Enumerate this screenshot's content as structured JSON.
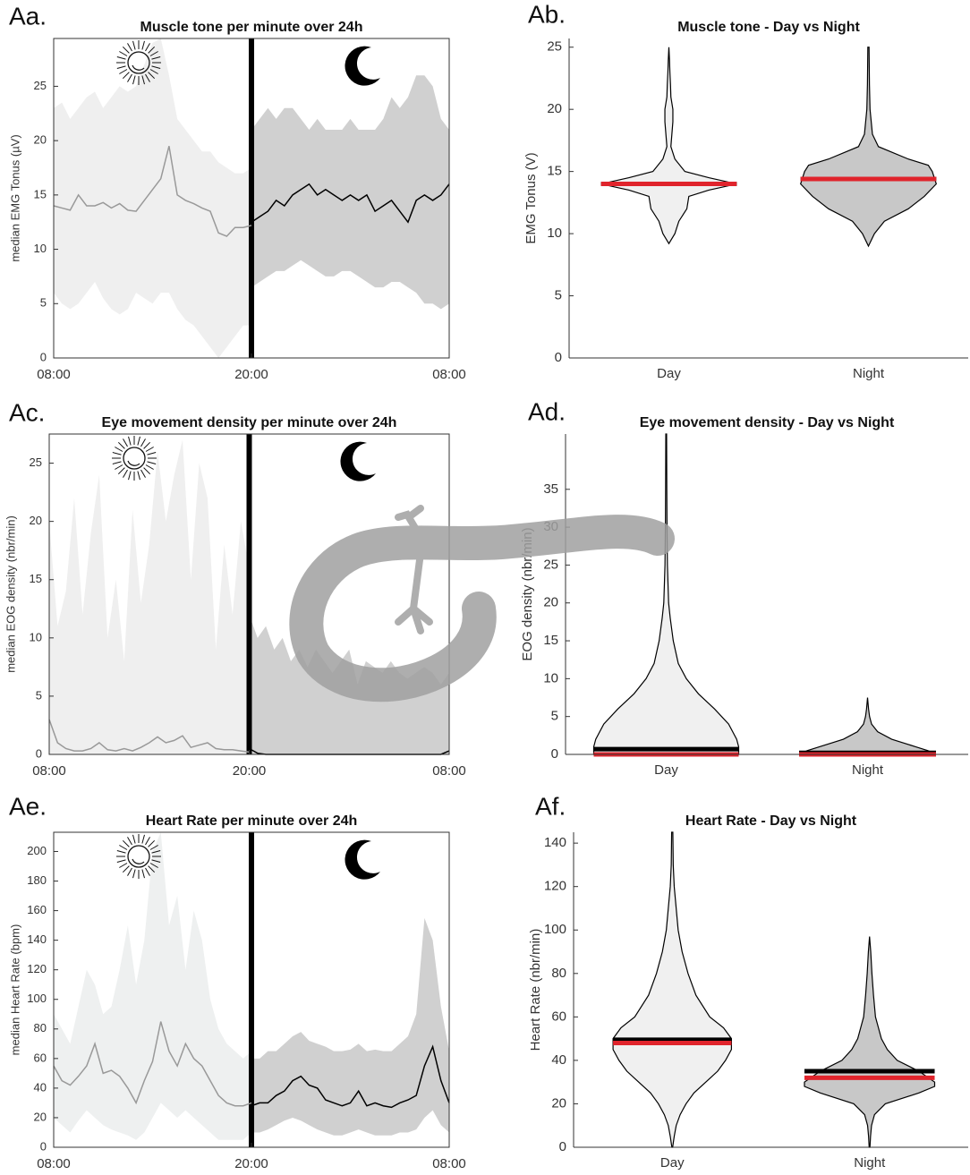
{
  "chart_data": [
    {
      "type": "line",
      "panel_label": "Aa.",
      "title": "Muscle tone per minute over 24h",
      "ylabel": "median EMG Tonus (µV)",
      "xlim": [
        0,
        24
      ],
      "xticks": [
        {
          "value": 0,
          "label": "08:00"
        },
        {
          "value": 12,
          "label": "20:00"
        },
        {
          "value": 24,
          "label": "08:00"
        }
      ],
      "ylim": [
        0,
        29.4
      ],
      "yticks": [
        0,
        5,
        10,
        15,
        20,
        25
      ],
      "divider": 12,
      "series": [
        {
          "color": "#999999",
          "band_color": "#efefef",
          "x": [
            0,
            0.5,
            1,
            1.5,
            2,
            2.5,
            3,
            3.5,
            4,
            4.5,
            5,
            5.5,
            6,
            6.5,
            7,
            7.5,
            8,
            8.5,
            9,
            9.5,
            10,
            10.5,
            11,
            11.5,
            12
          ],
          "values": [
            14,
            13.8,
            13.6,
            15,
            14,
            14,
            14.3,
            13.8,
            14.2,
            13.6,
            13.5,
            14.5,
            15.5,
            16.5,
            19.5,
            15,
            14.5,
            14.2,
            13.8,
            13.5,
            11.5,
            11.2,
            12,
            12,
            12.2
          ],
          "upper": [
            23,
            23.5,
            22,
            23,
            24,
            24.5,
            23,
            24,
            25,
            24.5,
            25,
            27,
            29,
            29.4,
            26,
            22,
            21,
            20,
            19,
            19,
            18,
            17.5,
            17,
            17,
            17.5
          ],
          "lower": [
            6,
            5,
            4.5,
            5,
            6,
            7,
            5.5,
            4.5,
            4,
            4.5,
            6,
            5.5,
            5,
            6,
            6,
            4.5,
            3.5,
            3,
            2,
            1,
            0,
            1,
            2,
            3,
            3
          ]
        },
        {
          "color": "#000000",
          "band_color": "#d0d0d0",
          "x": [
            12,
            12.5,
            13,
            13.5,
            14,
            14.5,
            15,
            15.5,
            16,
            16.5,
            17,
            17.5,
            18,
            18.5,
            19,
            19.5,
            20,
            20.5,
            21,
            21.5,
            22,
            22.5,
            23,
            23.5,
            24
          ],
          "values": [
            12.5,
            13,
            13.5,
            14.5,
            14,
            15,
            15.5,
            16,
            15,
            15.5,
            15,
            14.5,
            15,
            14.5,
            15,
            13.5,
            14,
            14.5,
            13.5,
            12.5,
            14.5,
            15,
            14.5,
            15,
            16
          ],
          "upper": [
            21,
            22,
            23,
            22,
            23,
            23,
            22,
            21,
            22,
            21,
            21,
            21,
            22,
            21,
            21,
            21,
            22,
            24,
            23,
            24,
            26,
            26,
            25,
            22,
            21
          ],
          "lower": [
            6.5,
            7,
            7.5,
            8,
            8,
            8.5,
            9,
            8.5,
            8,
            7.5,
            7.5,
            8,
            8,
            7.5,
            7,
            6.5,
            6.5,
            7,
            7,
            6.5,
            6,
            5,
            5,
            4.5,
            5
          ]
        }
      ]
    },
    {
      "type": "violin",
      "panel_label": "Ab.",
      "title": "Muscle tone - Day vs Night",
      "ylabel": "EMG Tonus (V)",
      "categories": [
        "Day",
        "Night"
      ],
      "ylim": [
        0,
        25.7
      ],
      "yticks": [
        0,
        5,
        10,
        15,
        20,
        25
      ],
      "violins": [
        {
          "fill": "#f0f0f0",
          "y": [
            9.2,
            10,
            11,
            12,
            13,
            13.5,
            14,
            14.5,
            15,
            16,
            17,
            18,
            19,
            20,
            21,
            22,
            23,
            24,
            25
          ],
          "width": [
            0,
            0.03,
            0.05,
            0.09,
            0.1,
            0.2,
            0.34,
            0.2,
            0.08,
            0.03,
            0.01,
            0.015,
            0.02,
            0.02,
            0.01,
            0.008,
            0.005,
            0.003,
            0
          ]
        },
        {
          "fill": "#c8c8c8",
          "y": [
            9,
            10,
            11,
            12,
            13,
            14,
            15,
            15.5,
            16,
            17,
            18,
            20,
            22,
            25
          ],
          "width": [
            0,
            0.03,
            0.08,
            0.2,
            0.28,
            0.34,
            0.32,
            0.3,
            0.2,
            0.05,
            0.02,
            0.008,
            0.005,
            0.003
          ]
        }
      ],
      "means": [
        14,
        14.4
      ],
      "mean_color": "#000000",
      "medians": [
        14,
        14.4
      ],
      "median_color": "#e0242c"
    },
    {
      "type": "line",
      "panel_label": "Ac.",
      "title": "Eye movement density per minute over 24h",
      "ylabel": "median EOG density (nbr/min)",
      "xlim": [
        0,
        24
      ],
      "xticks": [
        {
          "value": 0,
          "label": "08:00"
        },
        {
          "value": 12,
          "label": "20:00"
        },
        {
          "value": 24,
          "label": "08:00"
        }
      ],
      "ylim": [
        0,
        27.5
      ],
      "yticks": [
        0,
        5,
        10,
        15,
        20,
        25
      ],
      "divider": 12,
      "series": [
        {
          "color": "#999999",
          "band_color": "#efefef",
          "x": [
            0,
            0.5,
            1,
            1.5,
            2,
            2.5,
            3,
            3.5,
            4,
            4.5,
            5,
            5.5,
            6,
            6.5,
            7,
            7.5,
            8,
            8.5,
            9,
            9.5,
            10,
            10.5,
            11,
            11.5,
            12
          ],
          "values": [
            3,
            1,
            0.5,
            0.3,
            0.3,
            0.5,
            1,
            0.4,
            0.3,
            0.5,
            0.3,
            0.6,
            1,
            1.5,
            1,
            1.2,
            1.6,
            0.6,
            0.8,
            1,
            0.5,
            0.4,
            0.4,
            0.3,
            0.2
          ],
          "upper": [
            20,
            11,
            14,
            22,
            12,
            19,
            24,
            10,
            15,
            8,
            21,
            13,
            18,
            26,
            20,
            24,
            27,
            15,
            25,
            22,
            9,
            18,
            12,
            20,
            16
          ],
          "lower": [
            0,
            0,
            0,
            0,
            0,
            0,
            0,
            0,
            0,
            0,
            0,
            0,
            0,
            0,
            0,
            0,
            0,
            0,
            0,
            0,
            0,
            0,
            0,
            0,
            0
          ]
        },
        {
          "color": "#000000",
          "band_color": "#d0d0d0",
          "x": [
            12,
            12.5,
            13,
            13.5,
            14,
            14.5,
            15,
            15.5,
            16,
            16.5,
            17,
            17.5,
            18,
            18.5,
            19,
            19.5,
            20,
            20.5,
            21,
            21.5,
            22,
            22.5,
            23,
            23.5,
            24
          ],
          "values": [
            0.5,
            0.1,
            0,
            0,
            0,
            0,
            0,
            0,
            0,
            0,
            0,
            0,
            0,
            0,
            0,
            0,
            0,
            0,
            0,
            0,
            0,
            0,
            0,
            0,
            0.3
          ],
          "upper": [
            12,
            10,
            11,
            9,
            10,
            8,
            9,
            7.5,
            9,
            8,
            7,
            8,
            9,
            6,
            8,
            7.5,
            7,
            8,
            7,
            6.5,
            7,
            7.5,
            7,
            6,
            7
          ],
          "lower": [
            0,
            0,
            0,
            0,
            0,
            0,
            0,
            0,
            0,
            0,
            0,
            0,
            0,
            0,
            0,
            0,
            0,
            0,
            0,
            0,
            0,
            0,
            0,
            0,
            0
          ]
        }
      ]
    },
    {
      "type": "violin",
      "panel_label": "Ad.",
      "title": "Eye movement density - Day vs Night",
      "ylabel": "EOG density (nbr/min)",
      "categories": [
        "Day",
        "Night"
      ],
      "ylim": [
        0,
        42.3
      ],
      "yticks": [
        0,
        5,
        10,
        15,
        20,
        25,
        30,
        35
      ],
      "violins": [
        {
          "fill": "#f0f0f0",
          "y": [
            0,
            1,
            2,
            4,
            6,
            8,
            10,
            12,
            15,
            18,
            20,
            25,
            30,
            35,
            42.3
          ],
          "width": [
            0.36,
            0.36,
            0.35,
            0.31,
            0.24,
            0.16,
            0.1,
            0.06,
            0.035,
            0.02,
            0.012,
            0.006,
            0.004,
            0.003,
            0.002
          ]
        },
        {
          "fill": "#c8c8c8",
          "y": [
            0,
            0.5,
            1,
            2,
            3,
            4,
            5,
            6,
            7.5
          ],
          "width": [
            0.34,
            0.3,
            0.24,
            0.12,
            0.05,
            0.02,
            0.01,
            0.005,
            0
          ]
        }
      ],
      "means": [
        0.7,
        0.2
      ],
      "mean_color": "#000000",
      "medians": [
        0,
        0
      ],
      "median_color": "#e0242c"
    },
    {
      "type": "line",
      "panel_label": "Ae.",
      "title": "Heart Rate per minute over 24h",
      "ylabel": "median Heart Rate (bpm)",
      "xlim": [
        0,
        24
      ],
      "xticks": [
        {
          "value": 0,
          "label": "08:00"
        },
        {
          "value": 12,
          "label": "20:00"
        },
        {
          "value": 24,
          "label": "08:00"
        }
      ],
      "ylim": [
        0,
        213
      ],
      "yticks": [
        0,
        20,
        40,
        60,
        80,
        100,
        120,
        140,
        160,
        180,
        200
      ],
      "divider": 12,
      "series": [
        {
          "color": "#999999",
          "band_color": "#eef0f0",
          "x": [
            0,
            0.5,
            1,
            1.5,
            2,
            2.5,
            3,
            3.5,
            4,
            4.5,
            5,
            5.5,
            6,
            6.5,
            7,
            7.5,
            8,
            8.5,
            9,
            9.5,
            10,
            10.5,
            11,
            11.5,
            12
          ],
          "values": [
            55,
            45,
            42,
            48,
            55,
            70,
            50,
            52,
            48,
            40,
            30,
            45,
            58,
            85,
            65,
            55,
            70,
            60,
            55,
            45,
            35,
            30,
            28,
            28,
            30
          ],
          "upper": [
            90,
            80,
            70,
            95,
            120,
            110,
            90,
            95,
            120,
            150,
            110,
            140,
            200,
            213,
            150,
            170,
            120,
            160,
            140,
            100,
            80,
            70,
            65,
            60,
            65
          ],
          "lower": [
            20,
            15,
            10,
            18,
            25,
            20,
            15,
            12,
            10,
            8,
            5,
            10,
            20,
            30,
            25,
            20,
            25,
            20,
            15,
            10,
            5,
            5,
            5,
            5,
            10
          ]
        },
        {
          "color": "#000000",
          "band_color": "#d0d0d0",
          "x": [
            12,
            12.5,
            13,
            13.5,
            14,
            14.5,
            15,
            15.5,
            16,
            16.5,
            17,
            17.5,
            18,
            18.5,
            19,
            19.5,
            20,
            20.5,
            21,
            21.5,
            22,
            22.5,
            23,
            23.5,
            24
          ],
          "values": [
            28,
            30,
            30,
            35,
            38,
            45,
            48,
            42,
            40,
            32,
            30,
            28,
            30,
            38,
            28,
            30,
            28,
            27,
            30,
            32,
            35,
            55,
            68,
            45,
            30
          ],
          "upper": [
            60,
            60,
            65,
            65,
            70,
            75,
            78,
            72,
            70,
            68,
            65,
            65,
            66,
            70,
            65,
            66,
            65,
            65,
            70,
            75,
            90,
            155,
            140,
            95,
            65
          ],
          "lower": [
            10,
            10,
            12,
            15,
            18,
            20,
            18,
            15,
            12,
            10,
            8,
            8,
            10,
            12,
            10,
            8,
            8,
            8,
            10,
            10,
            12,
            20,
            25,
            15,
            10
          ]
        }
      ]
    },
    {
      "type": "violin",
      "panel_label": "Af.",
      "title": "Heart Rate - Day vs Night",
      "ylabel": "Heart Rate (nbr/min)",
      "categories": [
        "Day",
        "Night"
      ],
      "ylim": [
        0,
        145
      ],
      "yticks": [
        0,
        20,
        40,
        60,
        80,
        100,
        120,
        140
      ],
      "violins": [
        {
          "fill": "#f0f0f0",
          "y": [
            0,
            5,
            10,
            15,
            20,
            25,
            30,
            35,
            40,
            45,
            50,
            55,
            60,
            70,
            80,
            90,
            100,
            110,
            120,
            130,
            145
          ],
          "width": [
            0.002,
            0.01,
            0.02,
            0.04,
            0.07,
            0.11,
            0.17,
            0.23,
            0.27,
            0.3,
            0.3,
            0.26,
            0.19,
            0.12,
            0.08,
            0.05,
            0.03,
            0.02,
            0.01,
            0.005,
            0.003
          ]
        },
        {
          "fill": "#c8c8c8",
          "y": [
            0,
            5,
            10,
            15,
            20,
            25,
            28,
            30,
            35,
            40,
            45,
            50,
            60,
            70,
            80,
            90,
            97
          ],
          "width": [
            0.002,
            0.005,
            0.01,
            0.025,
            0.08,
            0.25,
            0.33,
            0.33,
            0.25,
            0.14,
            0.09,
            0.06,
            0.03,
            0.02,
            0.012,
            0.006,
            0
          ]
        }
      ],
      "means": [
        49.5,
        35
      ],
      "mean_color": "#000000",
      "medians": [
        48,
        32
      ],
      "median_color": "#e0242c"
    }
  ]
}
